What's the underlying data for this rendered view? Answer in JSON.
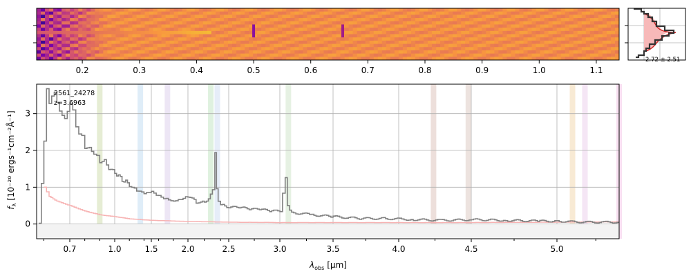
{
  "chart_data": [
    {
      "type": "heatmap",
      "panel": "2D spectrum",
      "colormap": "plasma",
      "x_ticks": [
        "0.2",
        "0.3",
        "0.4",
        "0.5",
        "0.6",
        "0.7",
        "0.8",
        "0.9",
        "1.0",
        "1.1"
      ],
      "x_tick_values": [
        0.2,
        0.3,
        0.4,
        0.5,
        0.6,
        0.7,
        0.8,
        0.9,
        1.0,
        1.1
      ],
      "rest_range_um": [
        0.12,
        1.14
      ],
      "y_ticks": [
        "",
        ""
      ]
    },
    {
      "type": "line",
      "panel": "pixel histogram",
      "annotation": "2.72 ± 2.51",
      "colors": {
        "fill": "#f7b9b9",
        "gaussian": "#cc2222",
        "histogram": "#333333"
      }
    },
    {
      "type": "line",
      "panel": "1D spectrum",
      "object_id": "2561_24278",
      "redshift_label": "z=3.6963",
      "redshift": 3.6963,
      "xlabel_main": "λ",
      "xlabel_sub": "obs",
      "xlabel_unit": "[μm]",
      "ylabel_main": "f",
      "ylabel_sub": "λ",
      "ylabel_unit": "[10⁻²⁰ ergs⁻¹cm⁻²Å⁻¹]",
      "x_ticks": [
        "0.7",
        "1.0",
        "1.5",
        "2.0",
        "2.5",
        "3.0",
        "3.5",
        "4.0",
        "4.5",
        "5.0"
      ],
      "x_tick_values": [
        0.7,
        1.0,
        1.5,
        2.0,
        2.5,
        3.0,
        3.5,
        4.0,
        4.5,
        5.0
      ],
      "y_ticks": [
        "0",
        "1",
        "2",
        "3"
      ],
      "y_tick_values": [
        0,
        1,
        2,
        3
      ],
      "ylim": [
        -0.4,
        3.8
      ],
      "grid": true,
      "x_scale": "nonlinear (prism)",
      "colors": {
        "flux": "#808080",
        "error": "#f7b3b3"
      },
      "series": [
        {
          "name": "",
          "x": [
            0.58,
            0.6,
            0.61,
            0.62,
            0.63,
            0.64,
            0.66,
            0.68,
            0.7,
            0.72,
            0.74,
            0.76,
            0.78,
            0.8,
            0.83,
            0.86,
            0.88,
            0.9,
            0.93,
            0.96,
            1.0,
            1.05,
            1.1,
            1.15,
            1.2,
            1.3,
            1.4,
            1.5,
            1.6,
            1.7,
            1.8,
            1.9,
            2.0,
            2.1,
            2.2,
            2.25,
            2.3,
            2.33,
            2.35,
            2.37,
            2.4,
            2.45,
            2.5,
            2.6,
            2.7,
            2.8,
            2.9,
            3.0,
            3.05,
            3.07,
            3.09,
            3.11,
            3.15,
            3.3,
            3.5,
            3.7,
            3.9,
            4.1,
            4.3,
            4.5,
            4.7,
            4.9,
            5.0,
            5.1,
            5.2,
            5.3,
            5.4
          ],
          "y": [
            0.0,
            2.2,
            3.6,
            3.2,
            3.4,
            3.5,
            3.0,
            2.8,
            3.2,
            3.1,
            2.7,
            2.5,
            2.4,
            2.0,
            2.1,
            1.95,
            1.9,
            1.65,
            1.8,
            1.5,
            1.4,
            1.3,
            1.2,
            1.15,
            1.05,
            0.9,
            0.8,
            0.85,
            0.75,
            0.7,
            0.65,
            0.7,
            0.75,
            0.6,
            0.6,
            0.7,
            0.9,
            1.9,
            1.0,
            0.6,
            0.5,
            0.5,
            0.45,
            0.45,
            0.4,
            0.4,
            0.35,
            0.35,
            1.3,
            0.5,
            0.35,
            0.3,
            0.3,
            0.25,
            0.2,
            0.15,
            0.15,
            0.12,
            0.1,
            0.12,
            0.1,
            0.08,
            0.08,
            0.06,
            0.05,
            0.05,
            0.05
          ]
        },
        {
          "name": "",
          "x": [
            0.6,
            0.62,
            0.65,
            0.7,
            0.8,
            0.9,
            1.0,
            1.2,
            1.5,
            2.0,
            2.5,
            3.0,
            3.5,
            4.0,
            4.5,
            5.0,
            5.4
          ],
          "y": [
            1.0,
            0.75,
            0.62,
            0.5,
            0.35,
            0.25,
            0.2,
            0.14,
            0.1,
            0.07,
            0.05,
            0.04,
            0.04,
            0.04,
            0.04,
            0.05,
            0.06
          ]
        }
      ],
      "line_markers_um": [
        0.9,
        1.35,
        1.72,
        2.28,
        2.36,
        3.08,
        4.24,
        4.48,
        5.1,
        5.18,
        5.4
      ],
      "line_marker_colors": [
        "#c8d8a0",
        "#b8d8f0",
        "#d8c8e8",
        "#b8e0b8",
        "#c8d8f0",
        "#c8e0c0",
        "#d8b8b0",
        "#d8c0b8",
        "#f0d0a0",
        "#e8c8e8",
        "#f0b8e0"
      ]
    }
  ]
}
